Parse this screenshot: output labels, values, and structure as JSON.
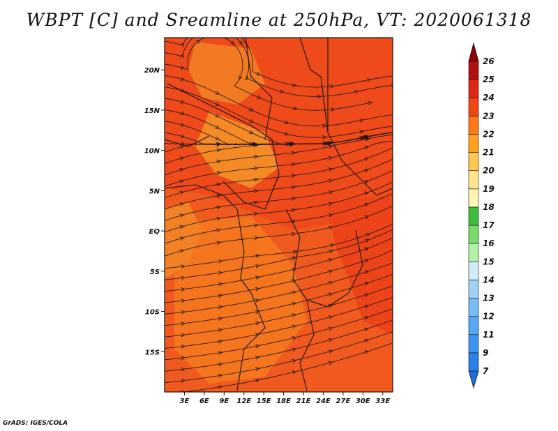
{
  "title": "WBPT [C] and Sreamline at 250hPa, VT: 2020061318",
  "credit": "GrADS: IGES/COLA",
  "map": {
    "variable": "WBPT",
    "units": "C",
    "level": "250hPa",
    "valid_time": "2020061318",
    "lat_ticks": [
      "20N",
      "15N",
      "10N",
      "5N",
      "EQ",
      "5S",
      "10S",
      "15S"
    ],
    "lon_ticks": [
      "3E",
      "6E",
      "9E",
      "12E",
      "15E",
      "18E",
      "21E",
      "24E",
      "27E",
      "30E",
      "33E"
    ],
    "lat_range": [
      -20,
      24
    ],
    "lon_range": [
      0,
      34.5
    ]
  },
  "colorbar": {
    "labels": [
      "7",
      "9",
      "11",
      "12",
      "13",
      "14",
      "15",
      "16",
      "17",
      "18",
      "19",
      "20",
      "21",
      "22",
      "23",
      "24",
      "25",
      "26"
    ],
    "colors": [
      "#1e6ee0",
      "#2c80ec",
      "#3c94f0",
      "#56a8f4",
      "#78bcf6",
      "#a0d2f8",
      "#d2ecfb",
      "#b4f0a8",
      "#78dc6a",
      "#3cbe3c",
      "#fff5b4",
      "#ffe68c",
      "#ffc850",
      "#ffa01e",
      "#ff7814",
      "#f04614",
      "#dc2814",
      "#b40f0f",
      "#960000"
    ]
  }
}
